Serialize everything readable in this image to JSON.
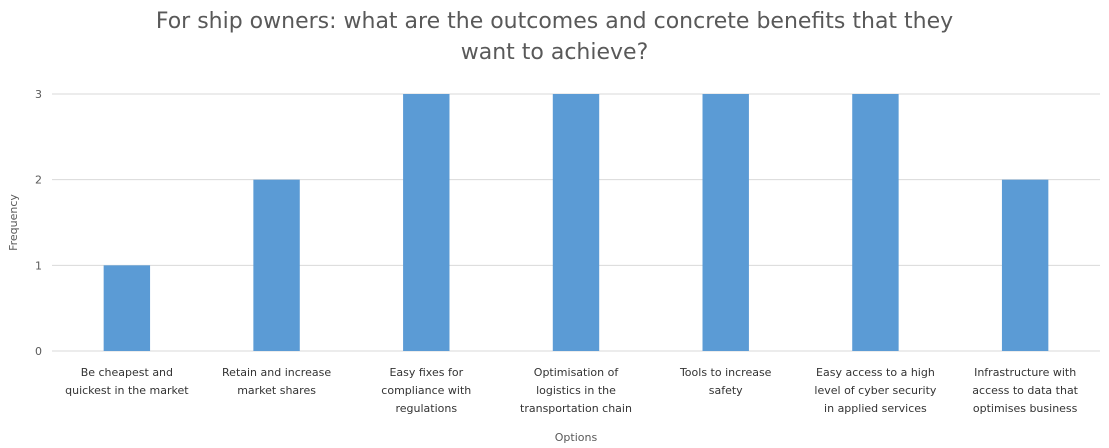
{
  "chart_data": {
    "type": "bar",
    "title_lines": [
      "For ship owners: what are the outcomes and concrete benefits that they",
      "want to achieve?"
    ],
    "xlabel": "Options",
    "ylabel": "Frequency",
    "ylim": [
      0,
      3
    ],
    "yticks": [
      "0",
      "1",
      "2",
      "3"
    ],
    "grid": true,
    "legend": "none",
    "bar_color": "#5b9bd5",
    "categories": [
      [
        "Be cheapest and",
        "quickest in the market"
      ],
      [
        "Retain and increase",
        "market shares"
      ],
      [
        "Easy fixes for",
        "compliance with",
        "regulations"
      ],
      [
        "Optimisation of",
        "logistics in the",
        "transportation chain"
      ],
      [
        "Tools to increase",
        "safety"
      ],
      [
        "Easy access to a high",
        "level of cyber security",
        "in applied services"
      ],
      [
        "Infrastructure with",
        "access to data that",
        "optimises business"
      ]
    ],
    "values": [
      1,
      2,
      3,
      3,
      3,
      3,
      2
    ]
  }
}
